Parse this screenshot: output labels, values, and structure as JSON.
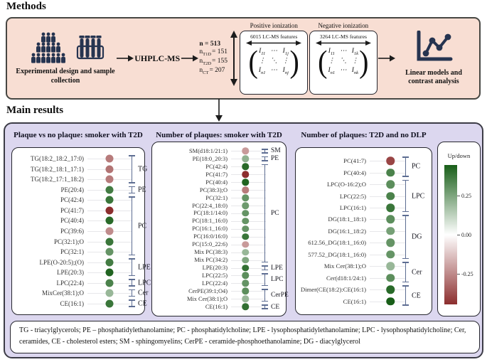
{
  "methods": {
    "section_title": "Methods",
    "exp_caption": "Experimental design and sample collection",
    "uhplc": "UHPLC-MS",
    "counts": {
      "total": "n = 513",
      "rows": [
        {
          "base": "n",
          "sub": "T1D",
          "rest": "= 151"
        },
        {
          "base": "n",
          "sub": "T2D",
          "rest": "= 155"
        },
        {
          "base": "n",
          "sub": "CT",
          "rest": "= 207"
        }
      ]
    },
    "paren_open": "(",
    "paren_close": ")",
    "pos": {
      "label": "Positive ionization",
      "features": "6015 LC-MS features",
      "matrix": [
        "I_11",
        "⋯",
        "I_1j",
        "⋮",
        "⋱",
        "⋮",
        "I_n1",
        "⋯",
        "I_nj"
      ]
    },
    "neg": {
      "label": "Negative ionization",
      "features": "3264 LC-MS features",
      "matrix": [
        "I_11",
        "⋯",
        "I_1k",
        "⋮",
        "⋱",
        "⋮",
        "I_n1",
        "⋯",
        "I_nk"
      ]
    },
    "linear_caption": "Linear models and contrast analysis"
  },
  "results": {
    "section_title": "Main results",
    "legend": {
      "title": "Up/down",
      "ticks": [
        "0.25",
        "0.00",
        "-0.25"
      ],
      "colors": {
        "up": "#185e18",
        "mid": "#ffffff",
        "down": "#8c2e2e"
      }
    },
    "footnote": "TG - triacylglycerols; PE – phosphatidylethanolamine; PC - phosphatidylcholine; LPE - lysophosphatidylethanolamine; LPC - lysophosphatidylcholine; Cer, ceramides, CE - cholesterol esters; SM - sphingomyelins; CerPE - ceramide-phosphoethanolamine; DG - diacylglycerol"
  },
  "chart_data": [
    {
      "type": "scatter",
      "subtype": "categorical-dot-plot",
      "title": "Plaque vs no plaque: smoker with T2D",
      "value_scale": {
        "label": "Up/down",
        "ticks": [
          0.25,
          0.0,
          -0.25
        ]
      },
      "items": [
        {
          "label": "TG(18:2_18:2_17:0)",
          "value": -0.17
        },
        {
          "label": "TG(18:2_18:1_17:1)",
          "value": -0.18
        },
        {
          "label": "TG(18:2_17:1_18:2)",
          "value": -0.17
        },
        {
          "label": "PE(20:4)",
          "value": 0.22
        },
        {
          "label": "PC(42:4)",
          "value": 0.23
        },
        {
          "label": "PC(41:7)",
          "value": -0.28
        },
        {
          "label": "PC(40:4)",
          "value": 0.25
        },
        {
          "label": "PC(39:6)",
          "value": -0.15
        },
        {
          "label": "PC(32:1);O",
          "value": 0.23
        },
        {
          "label": "PC(32:1)",
          "value": 0.18
        },
        {
          "label": "LPE(O-20:5);(O)",
          "value": 0.22
        },
        {
          "label": "LPE(20:3)",
          "value": 0.26
        },
        {
          "label": "LPC(22:4)",
          "value": 0.21
        },
        {
          "label": "MixCer(38:1);O",
          "value": 0.12
        },
        {
          "label": "CE(16:1)",
          "value": 0.23
        }
      ],
      "groups": [
        {
          "label": "TG",
          "start": 0,
          "end": 2
        },
        {
          "label": "PE",
          "start": 3,
          "end": 3
        },
        {
          "label": "PC",
          "start": 4,
          "end": 9
        },
        {
          "label": "LPE",
          "start": 10,
          "end": 11
        },
        {
          "label": "LPC",
          "start": 12,
          "end": 12
        },
        {
          "label": "Cer",
          "start": 13,
          "end": 13
        },
        {
          "label": "CE",
          "start": 14,
          "end": 14
        }
      ]
    },
    {
      "type": "scatter",
      "subtype": "categorical-dot-plot",
      "title": "Number of plaques: smoker with T2D",
      "value_scale": {
        "label": "Up/down",
        "ticks": [
          0.25,
          0.0,
          -0.25
        ]
      },
      "items": [
        {
          "label": "SM(d18:1/21:1)",
          "value": -0.13
        },
        {
          "label": "PE(18:0_20:3)",
          "value": 0.13
        },
        {
          "label": "PC(42:4)",
          "value": 0.25
        },
        {
          "label": "PC(41:7)",
          "value": -0.28
        },
        {
          "label": "PC(40:4)",
          "value": 0.26
        },
        {
          "label": "PC(38:3);O",
          "value": -0.17
        },
        {
          "label": "PC(32:1)",
          "value": 0.18
        },
        {
          "label": "PC(22:4_18:0)",
          "value": 0.17
        },
        {
          "label": "PC(18:1/14:0)",
          "value": 0.18
        },
        {
          "label": "PC(18:1_16:0)",
          "value": 0.18
        },
        {
          "label": "PC(16:1_16:0)",
          "value": 0.18
        },
        {
          "label": "PC(16:0/16:0)",
          "value": 0.23
        },
        {
          "label": "PC(15:0_22:6)",
          "value": -0.13
        },
        {
          "label": "Mix PC(38:3)",
          "value": 0.12
        },
        {
          "label": "Mix PC(34:2)",
          "value": 0.15
        },
        {
          "label": "LPE(20:3)",
          "value": 0.24
        },
        {
          "label": "LPC(22:5)",
          "value": 0.19
        },
        {
          "label": "LPC(22:4)",
          "value": 0.18
        },
        {
          "label": "CerPE(39:1;O4)",
          "value": 0.19
        },
        {
          "label": "Mix Cer(38:1);O",
          "value": 0.12
        },
        {
          "label": "CE(16:1)",
          "value": 0.24
        }
      ],
      "groups": [
        {
          "label": "SM",
          "start": 0,
          "end": 0
        },
        {
          "label": "PE",
          "start": 1,
          "end": 1
        },
        {
          "label": "PC",
          "start": 2,
          "end": 14
        },
        {
          "label": "LPE",
          "start": 15,
          "end": 15
        },
        {
          "label": "LPC",
          "start": 16,
          "end": 17
        },
        {
          "label": "CerPE",
          "start": 18,
          "end": 19
        },
        {
          "label": "CE",
          "start": 20,
          "end": 20
        }
      ]
    },
    {
      "type": "scatter",
      "subtype": "categorical-dot-plot",
      "title": "Number of plaques: T2D and no DLP",
      "value_scale": {
        "label": "Up/down",
        "ticks": [
          0.25,
          0.0,
          -0.25
        ]
      },
      "items": [
        {
          "label": "PC(41:7)",
          "value": -0.24
        },
        {
          "label": "PC(40:4)",
          "value": 0.21
        },
        {
          "label": "LPC(O-16:2);O",
          "value": 0.19
        },
        {
          "label": "LPC(22:5)",
          "value": 0.21
        },
        {
          "label": "LPC(16:1)",
          "value": 0.23
        },
        {
          "label": "DG(18:1_18:1)",
          "value": 0.19
        },
        {
          "label": "DG(16:1_18:2)",
          "value": 0.16
        },
        {
          "label": "612.56_DG(18:1_16:0)",
          "value": 0.18
        },
        {
          "label": "577.52_DG(18:1_16:0)",
          "value": 0.18
        },
        {
          "label": "Mix Cer(38:1);O",
          "value": 0.12
        },
        {
          "label": "Cer(d18:1/24:1)",
          "value": 0.19
        },
        {
          "label": "Dimer(CE(18:2):CE(16:1)",
          "value": 0.25
        },
        {
          "label": "CE(16:1)",
          "value": 0.28
        }
      ],
      "groups": [
        {
          "label": "PC",
          "start": 0,
          "end": 1
        },
        {
          "label": "LPC",
          "start": 2,
          "end": 4
        },
        {
          "label": "DG",
          "start": 5,
          "end": 8
        },
        {
          "label": "Cer",
          "start": 9,
          "end": 10
        },
        {
          "label": "CE",
          "start": 11,
          "end": 12
        }
      ]
    }
  ]
}
